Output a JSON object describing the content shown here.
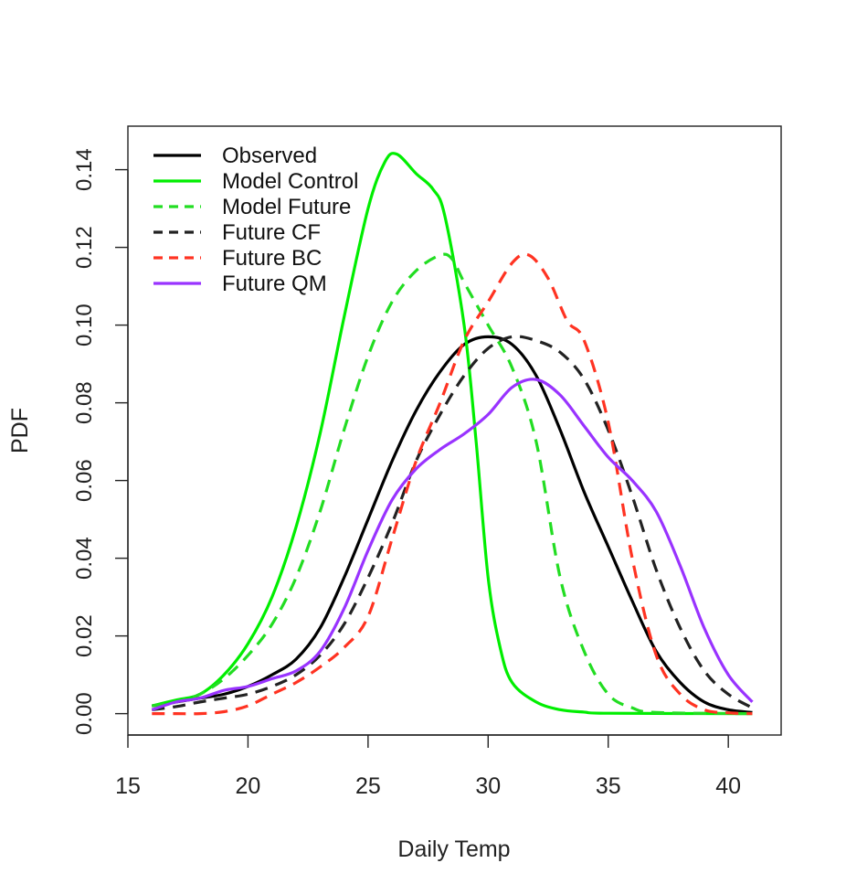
{
  "chart_data": {
    "type": "line",
    "title": "",
    "xlabel": "Daily Temp",
    "ylabel": "PDF",
    "xlim": [
      15,
      42.2
    ],
    "ylim": [
      -0.0055,
      0.1512
    ],
    "x_ticks": [
      15,
      20,
      25,
      30,
      35,
      40
    ],
    "y_ticks": [
      0.0,
      0.02,
      0.04,
      0.06,
      0.08,
      0.1,
      0.12,
      0.14
    ],
    "x_tick_labels": [
      "15",
      "20",
      "25",
      "30",
      "35",
      "40"
    ],
    "y_tick_labels": [
      "0.00",
      "0.02",
      "0.04",
      "0.06",
      "0.08",
      "0.10",
      "0.12",
      "0.14"
    ],
    "grid": false,
    "legend_position": "top-left",
    "series": [
      {
        "name": "Observed",
        "color": "#000000",
        "dash": "solid",
        "points": [
          [
            16,
            0.002
          ],
          [
            17,
            0.003
          ],
          [
            18,
            0.004
          ],
          [
            19,
            0.005
          ],
          [
            20,
            0.007
          ],
          [
            21,
            0.01
          ],
          [
            22,
            0.014
          ],
          [
            23,
            0.022
          ],
          [
            24,
            0.035
          ],
          [
            25,
            0.05
          ],
          [
            26,
            0.065
          ],
          [
            27,
            0.078
          ],
          [
            28,
            0.088
          ],
          [
            29,
            0.095
          ],
          [
            30,
            0.097
          ],
          [
            31,
            0.095
          ],
          [
            32,
            0.087
          ],
          [
            33,
            0.073
          ],
          [
            34,
            0.057
          ],
          [
            35,
            0.043
          ],
          [
            36,
            0.029
          ],
          [
            37,
            0.016
          ],
          [
            38,
            0.008
          ],
          [
            39,
            0.003
          ],
          [
            40,
            0.001
          ],
          [
            41,
            0.0003
          ]
        ]
      },
      {
        "name": "Model Control",
        "color": "#00ee00",
        "dash": "solid",
        "points": [
          [
            16,
            0.002
          ],
          [
            17,
            0.0035
          ],
          [
            18,
            0.005
          ],
          [
            19,
            0.01
          ],
          [
            20,
            0.018
          ],
          [
            21,
            0.03
          ],
          [
            22,
            0.048
          ],
          [
            23,
            0.072
          ],
          [
            24,
            0.102
          ],
          [
            25,
            0.13
          ],
          [
            25.7,
            0.142
          ],
          [
            26.2,
            0.144
          ],
          [
            27,
            0.139
          ],
          [
            27.7,
            0.135
          ],
          [
            28.2,
            0.128
          ],
          [
            29,
            0.1
          ],
          [
            29.5,
            0.07
          ],
          [
            30,
            0.035
          ],
          [
            30.5,
            0.017
          ],
          [
            31,
            0.008
          ],
          [
            32,
            0.003
          ],
          [
            33,
            0.001
          ],
          [
            34,
            0.0004
          ],
          [
            35,
            0.0001
          ],
          [
            41,
            0.0
          ]
        ]
      },
      {
        "name": "Model Future",
        "color": "#22dd22",
        "dash": "dashed",
        "points": [
          [
            16,
            0.002
          ],
          [
            17,
            0.003
          ],
          [
            18,
            0.005
          ],
          [
            19,
            0.009
          ],
          [
            20,
            0.015
          ],
          [
            21,
            0.023
          ],
          [
            22,
            0.035
          ],
          [
            23,
            0.052
          ],
          [
            24,
            0.073
          ],
          [
            25,
            0.092
          ],
          [
            26,
            0.106
          ],
          [
            27,
            0.114
          ],
          [
            28,
            0.118
          ],
          [
            28.5,
            0.117
          ],
          [
            29,
            0.111
          ],
          [
            30,
            0.1
          ],
          [
            31,
            0.089
          ],
          [
            32,
            0.07
          ],
          [
            33,
            0.035
          ],
          [
            34,
            0.016
          ],
          [
            35,
            0.005
          ],
          [
            36,
            0.0015
          ],
          [
            37,
            0.0003
          ],
          [
            41,
            0.0
          ]
        ]
      },
      {
        "name": "Future CF",
        "color": "#222222",
        "dash": "dashed",
        "points": [
          [
            16,
            0.001
          ],
          [
            17,
            0.0018
          ],
          [
            18,
            0.003
          ],
          [
            19,
            0.004
          ],
          [
            20,
            0.005
          ],
          [
            21,
            0.007
          ],
          [
            22,
            0.01
          ],
          [
            23,
            0.015
          ],
          [
            24,
            0.023
          ],
          [
            25,
            0.035
          ],
          [
            26,
            0.049
          ],
          [
            27,
            0.065
          ],
          [
            28,
            0.077
          ],
          [
            29,
            0.087
          ],
          [
            30,
            0.094
          ],
          [
            31,
            0.097
          ],
          [
            32,
            0.096
          ],
          [
            33,
            0.093
          ],
          [
            34,
            0.086
          ],
          [
            35,
            0.073
          ],
          [
            36,
            0.056
          ],
          [
            37,
            0.037
          ],
          [
            38,
            0.022
          ],
          [
            39,
            0.011
          ],
          [
            40,
            0.005
          ],
          [
            41,
            0.0015
          ]
        ]
      },
      {
        "name": "Future BC",
        "color": "#ff3322",
        "dash": "dashed",
        "points": [
          [
            16,
            0.0
          ],
          [
            17,
            0.0
          ],
          [
            18,
            0.0
          ],
          [
            19,
            0.0005
          ],
          [
            20,
            0.002
          ],
          [
            21,
            0.005
          ],
          [
            22,
            0.008
          ],
          [
            23,
            0.012
          ],
          [
            24,
            0.017
          ],
          [
            25,
            0.025
          ],
          [
            26,
            0.045
          ],
          [
            27,
            0.065
          ],
          [
            28,
            0.08
          ],
          [
            29,
            0.096
          ],
          [
            30,
            0.106
          ],
          [
            31,
            0.116
          ],
          [
            31.7,
            0.118
          ],
          [
            32.5,
            0.112
          ],
          [
            33.3,
            0.101
          ],
          [
            34,
            0.096
          ],
          [
            35,
            0.075
          ],
          [
            36,
            0.04
          ],
          [
            37,
            0.015
          ],
          [
            38,
            0.005
          ],
          [
            39,
            0.001
          ],
          [
            40,
            0.0002
          ],
          [
            41,
            0.0
          ]
        ]
      },
      {
        "name": "Future QM",
        "color": "#9933ff",
        "dash": "solid",
        "points": [
          [
            16,
            0.001
          ],
          [
            17,
            0.003
          ],
          [
            18,
            0.004
          ],
          [
            19,
            0.006
          ],
          [
            20,
            0.007
          ],
          [
            21,
            0.009
          ],
          [
            22,
            0.011
          ],
          [
            23,
            0.016
          ],
          [
            24,
            0.027
          ],
          [
            25,
            0.042
          ],
          [
            26,
            0.055
          ],
          [
            27,
            0.063
          ],
          [
            28,
            0.068
          ],
          [
            29,
            0.072
          ],
          [
            30,
            0.077
          ],
          [
            31,
            0.084
          ],
          [
            32,
            0.086
          ],
          [
            33,
            0.082
          ],
          [
            34,
            0.074
          ],
          [
            35,
            0.066
          ],
          [
            36,
            0.06
          ],
          [
            37,
            0.052
          ],
          [
            38,
            0.038
          ],
          [
            39,
            0.022
          ],
          [
            40,
            0.01
          ],
          [
            41,
            0.003
          ]
        ]
      }
    ]
  }
}
